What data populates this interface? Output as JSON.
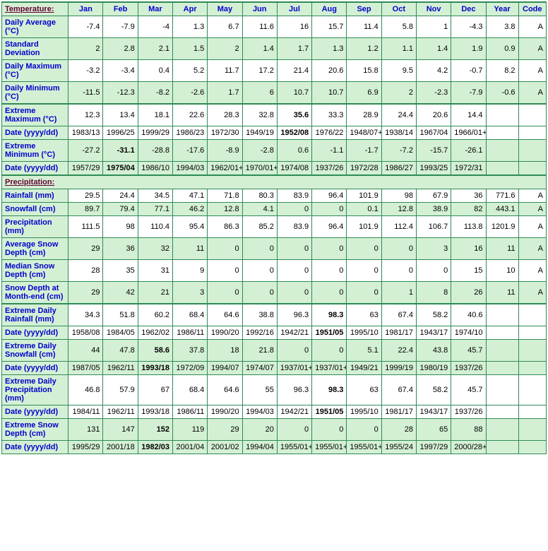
{
  "columns": [
    "Jan",
    "Feb",
    "Mar",
    "Apr",
    "May",
    "Jun",
    "Jul",
    "Aug",
    "Sep",
    "Oct",
    "Nov",
    "Dec",
    "Year",
    "Code"
  ],
  "sections": [
    {
      "title": "Temperature:",
      "rows": [
        {
          "label": "Daily Average (°C)",
          "shade": "white",
          "bold": [],
          "cells": [
            "-7.4",
            "-7.9",
            "-4",
            "1.3",
            "6.7",
            "11.6",
            "16",
            "15.7",
            "11.4",
            "5.8",
            "1",
            "-4.3",
            "3.8",
            "A"
          ]
        },
        {
          "label": "Standard Deviation",
          "shade": "green",
          "bold": [],
          "cells": [
            "2",
            "2.8",
            "2.1",
            "1.5",
            "2",
            "1.4",
            "1.7",
            "1.3",
            "1.2",
            "1.1",
            "1.4",
            "1.9",
            "0.9",
            "A"
          ]
        },
        {
          "label": "Daily Maximum (°C)",
          "shade": "white",
          "bold": [],
          "cells": [
            "-3.2",
            "-3.4",
            "0.4",
            "5.2",
            "11.7",
            "17.2",
            "21.4",
            "20.6",
            "15.8",
            "9.5",
            "4.2",
            "-0.7",
            "8.2",
            "A"
          ]
        },
        {
          "label": "Daily Minimum (°C)",
          "shade": "green",
          "bold": [],
          "cells": [
            "-11.5",
            "-12.3",
            "-8.2",
            "-2.6",
            "1.7",
            "6",
            "10.7",
            "10.7",
            "6.9",
            "2",
            "-2.3",
            "-7.9",
            "-0.6",
            "A"
          ],
          "bottom": true
        },
        {
          "label": "Extreme Maximum (°C)",
          "shade": "white",
          "bold": [
            6
          ],
          "cells": [
            "12.3",
            "13.4",
            "18.1",
            "22.6",
            "28.3",
            "32.8",
            "35.6",
            "33.3",
            "28.9",
            "24.4",
            "20.6",
            "14.4",
            "",
            ""
          ],
          "top": true
        },
        {
          "label": "Date (yyyy/dd)",
          "shade": "white",
          "bold": [
            6
          ],
          "cells": [
            "1983/13",
            "1996/25",
            "1999/29",
            "1986/23",
            "1972/30",
            "1949/19",
            "1952/08",
            "1976/22",
            "1948/07+",
            "1938/14",
            "1967/04",
            "1966/01+",
            "",
            ""
          ]
        },
        {
          "label": "Extreme Minimum (°C)",
          "shade": "green",
          "bold": [
            1
          ],
          "cells": [
            "-27.2",
            "-31.1",
            "-28.8",
            "-17.6",
            "-8.9",
            "-2.8",
            "0.6",
            "-1.1",
            "-1.7",
            "-7.2",
            "-15.7",
            "-26.1",
            "",
            ""
          ]
        },
        {
          "label": "Date (yyyy/dd)",
          "shade": "green",
          "bold": [
            1
          ],
          "cells": [
            "1957/29",
            "1975/04",
            "1986/10",
            "1994/03",
            "1962/01+",
            "1970/01+",
            "1974/08",
            "1937/26",
            "1972/28",
            "1986/27",
            "1993/25",
            "1972/31",
            "",
            ""
          ],
          "bottom": true
        }
      ]
    },
    {
      "title": "Precipitation:",
      "rows": [
        {
          "label": "Rainfall (mm)",
          "shade": "white",
          "bold": [],
          "cells": [
            "29.5",
            "24.4",
            "34.5",
            "47.1",
            "71.8",
            "80.3",
            "83.9",
            "96.4",
            "101.9",
            "98",
            "67.9",
            "36",
            "771.6",
            "A"
          ]
        },
        {
          "label": "Snowfall (cm)",
          "shade": "green",
          "bold": [],
          "cells": [
            "89.7",
            "79.4",
            "77.1",
            "46.2",
            "12.8",
            "4.1",
            "0",
            "0",
            "0.1",
            "12.8",
            "38.9",
            "82",
            "443.1",
            "A"
          ]
        },
        {
          "label": "Precipitation (mm)",
          "shade": "white",
          "bold": [],
          "cells": [
            "111.5",
            "98",
            "110.4",
            "95.4",
            "86.3",
            "85.2",
            "83.9",
            "96.4",
            "101.9",
            "112.4",
            "106.7",
            "113.8",
            "1201.9",
            "A"
          ]
        },
        {
          "label": "Average Snow Depth (cm)",
          "shade": "green",
          "bold": [],
          "cells": [
            "29",
            "36",
            "32",
            "11",
            "0",
            "0",
            "0",
            "0",
            "0",
            "0",
            "3",
            "16",
            "11",
            "A"
          ]
        },
        {
          "label": "Median Snow Depth (cm)",
          "shade": "white",
          "bold": [],
          "cells": [
            "28",
            "35",
            "31",
            "9",
            "0",
            "0",
            "0",
            "0",
            "0",
            "0",
            "0",
            "15",
            "10",
            "A"
          ]
        },
        {
          "label": "Snow Depth at Month-end (cm)",
          "shade": "green",
          "bold": [],
          "cells": [
            "29",
            "42",
            "21",
            "3",
            "0",
            "0",
            "0",
            "0",
            "0",
            "1",
            "8",
            "26",
            "11",
            "A"
          ],
          "bottom": true
        },
        {
          "label": "Extreme Daily Rainfall (mm)",
          "shade": "white",
          "bold": [
            7
          ],
          "cells": [
            "34.3",
            "51.8",
            "60.2",
            "68.4",
            "64.6",
            "38.8",
            "96.3",
            "98.3",
            "63",
            "67.4",
            "58.2",
            "40.6",
            "",
            ""
          ],
          "top": true
        },
        {
          "label": "Date (yyyy/dd)",
          "shade": "white",
          "bold": [
            7
          ],
          "cells": [
            "1958/08",
            "1984/05",
            "1962/02",
            "1986/11",
            "1990/20",
            "1992/16",
            "1942/21",
            "1951/05",
            "1995/10",
            "1981/17",
            "1943/17",
            "1974/10",
            "",
            ""
          ]
        },
        {
          "label": "Extreme Daily Snowfall (cm)",
          "shade": "green",
          "bold": [
            2
          ],
          "cells": [
            "44",
            "47.8",
            "58.6",
            "37.8",
            "18",
            "21.8",
            "0",
            "0",
            "5.1",
            "22.4",
            "43.8",
            "45.7",
            "",
            ""
          ]
        },
        {
          "label": "Date (yyyy/dd)",
          "shade": "green",
          "bold": [
            2
          ],
          "cells": [
            "1987/05",
            "1962/11",
            "1993/18",
            "1972/09",
            "1994/07",
            "1974/07",
            "1937/01+",
            "1937/01+",
            "1949/21",
            "1999/19",
            "1980/19",
            "1937/26",
            "",
            ""
          ]
        },
        {
          "label": "Extreme Daily Precipitation (mm)",
          "shade": "white",
          "bold": [
            7
          ],
          "cells": [
            "46.8",
            "57.9",
            "67",
            "68.4",
            "64.6",
            "55",
            "96.3",
            "98.3",
            "63",
            "67.4",
            "58.2",
            "45.7",
            "",
            ""
          ]
        },
        {
          "label": "Date (yyyy/dd)",
          "shade": "white",
          "bold": [
            7
          ],
          "cells": [
            "1984/11",
            "1962/11",
            "1993/18",
            "1986/11",
            "1990/20",
            "1994/03",
            "1942/21",
            "1951/05",
            "1995/10",
            "1981/17",
            "1943/17",
            "1937/26",
            "",
            ""
          ]
        },
        {
          "label": "Extreme Snow Depth (cm)",
          "shade": "green",
          "bold": [
            2
          ],
          "cells": [
            "131",
            "147",
            "152",
            "119",
            "29",
            "20",
            "0",
            "0",
            "0",
            "28",
            "65",
            "88",
            "",
            ""
          ]
        },
        {
          "label": "Date (yyyy/dd)",
          "shade": "green",
          "bold": [
            2
          ],
          "cells": [
            "1995/29",
            "2001/18",
            "1982/03",
            "2001/04",
            "2001/02",
            "1994/04",
            "1955/01+",
            "1955/01+",
            "1955/01+",
            "1955/24",
            "1997/29",
            "2000/28+",
            "",
            ""
          ]
        }
      ]
    }
  ]
}
